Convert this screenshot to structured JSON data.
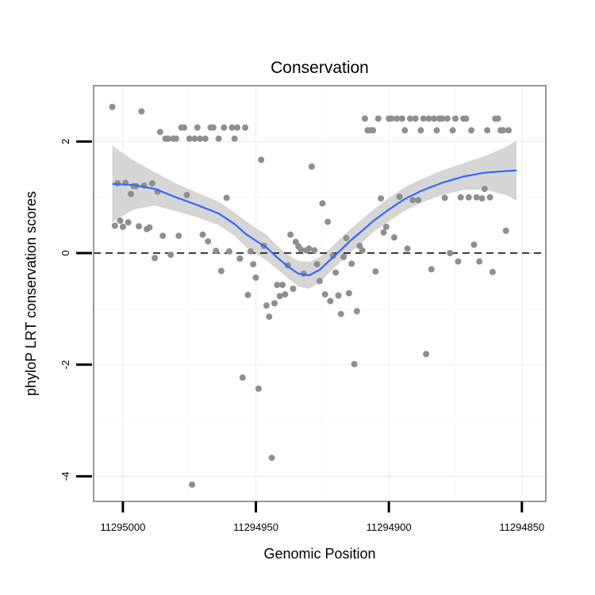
{
  "chart_data": {
    "type": "scatter",
    "title": "Conservation",
    "xlabel": "Genomic Position",
    "ylabel": "phyloP LRT conservation scores",
    "x_reversed": true,
    "xlim": [
      11295011,
      11294841
    ],
    "ylim": [
      -4.45,
      3.0
    ],
    "xticks": [
      11295000,
      11294950,
      11294900,
      11294850
    ],
    "xtick_labels": [
      "11295000",
      "11294950",
      "11294900",
      "11294850"
    ],
    "yticks": [
      2,
      0,
      -2,
      -4
    ],
    "ytick_labels": [
      "2",
      "0",
      "-2",
      "-4"
    ],
    "hline": 0,
    "grid": true,
    "legend": "none",
    "colors": {
      "points": "#8f8f8f",
      "smooth": "#3366ff",
      "band": "#d6d6d6"
    },
    "series": [
      {
        "type": "scatter",
        "points": [
          [
            11295004,
            2.62
          ],
          [
            11295003,
            0.49
          ],
          [
            11295002,
            1.25
          ],
          [
            11295001,
            0.58
          ],
          [
            11295000,
            0.47
          ],
          [
            11294999,
            1.26
          ],
          [
            11294998,
            0.55
          ],
          [
            11294997,
            1.06
          ],
          [
            11294996,
            1.2
          ],
          [
            11294995,
            1.2
          ],
          [
            11294994,
            0.48
          ],
          [
            11294993,
            2.54
          ],
          [
            11294992,
            1.21
          ],
          [
            11294991,
            0.43
          ],
          [
            11294990,
            0.46
          ],
          [
            11294989,
            1.25
          ],
          [
            11294988,
            -0.09
          ],
          [
            11294987,
            1.1
          ],
          [
            11294986,
            2.17
          ],
          [
            11294985,
            0.31
          ],
          [
            11294984,
            2.05
          ],
          [
            11294983,
            2.05
          ],
          [
            11294982,
            -0.03
          ],
          [
            11294981,
            2.05
          ],
          [
            11294980,
            2.05
          ],
          [
            11294979,
            0.31
          ],
          [
            11294978,
            2.25
          ],
          [
            11294977,
            2.25
          ],
          [
            11294976,
            1.04
          ],
          [
            11294975,
            2.05
          ],
          [
            11294974,
            -4.15
          ],
          [
            11294973,
            2.05
          ],
          [
            11294972,
            2.25
          ],
          [
            11294971,
            2.05
          ],
          [
            11294970,
            0.33
          ],
          [
            11294969,
            2.05
          ],
          [
            11294968,
            0.21
          ],
          [
            11294967,
            2.25
          ],
          [
            11294966,
            2.25
          ],
          [
            11294965,
            0.04
          ],
          [
            11294964,
            2.05
          ],
          [
            11294963,
            -0.32
          ],
          [
            11294962,
            2.25
          ],
          [
            11294961,
            0.99
          ],
          [
            11294960,
            0.03
          ],
          [
            11294959,
            2.25
          ],
          [
            11294958,
            2.05
          ],
          [
            11294957,
            2.25
          ],
          [
            11294956,
            -0.1
          ],
          [
            11294955,
            -2.23
          ],
          [
            11294954,
            2.25
          ],
          [
            11294953,
            -0.75
          ],
          [
            11294952,
            0.03
          ],
          [
            11294951,
            -0.2
          ],
          [
            11294950,
            -0.44
          ],
          [
            11294949,
            -2.43
          ],
          [
            11294948,
            1.67
          ],
          [
            11294947,
            0.13
          ],
          [
            11294946,
            -0.94
          ],
          [
            11294945,
            -1.14
          ],
          [
            11294944,
            -3.67
          ],
          [
            11294943,
            -0.9
          ],
          [
            11294942,
            -0.57
          ],
          [
            11294941,
            -0.77
          ],
          [
            11294940,
            -0.57
          ],
          [
            11294939,
            -0.74
          ],
          [
            11294938,
            -0.22
          ],
          [
            11294937,
            0.33
          ],
          [
            11294936,
            -0.64
          ],
          [
            11294935,
            0.2
          ],
          [
            11294934,
            0.12
          ],
          [
            11294933,
            0.06
          ],
          [
            11294932,
            -0.37
          ],
          [
            11294931,
            0.05
          ],
          [
            11294930,
            0.08
          ],
          [
            11294929,
            1.55
          ],
          [
            11294928,
            0.05
          ],
          [
            11294927,
            -0.2
          ],
          [
            11294926,
            -0.5
          ],
          [
            11294925,
            0.89
          ],
          [
            11294924,
            -0.74
          ],
          [
            11294923,
            0.56
          ],
          [
            11294922,
            -0.86
          ],
          [
            11294921,
            -0.05
          ],
          [
            11294920,
            -0.35
          ],
          [
            11294919,
            -0.76
          ],
          [
            11294918,
            -1.09
          ],
          [
            11294917,
            -0.07
          ],
          [
            11294916,
            0.27
          ],
          [
            11294915,
            -0.72
          ],
          [
            11294914,
            -0.19
          ],
          [
            11294913,
            -1.99
          ],
          [
            11294912,
            -1.04
          ],
          [
            11294911,
            0.13
          ],
          [
            11294910,
            0.05
          ],
          [
            11294909,
            2.41
          ],
          [
            11294908,
            2.2
          ],
          [
            11294907,
            2.2
          ],
          [
            11294906,
            2.2
          ],
          [
            11294905,
            -0.33
          ],
          [
            11294904,
            2.41
          ],
          [
            11294903,
            0.98
          ],
          [
            11294902,
            0.37
          ],
          [
            11294901,
            0.47
          ],
          [
            11294900,
            2.41
          ],
          [
            11294899,
            2.41
          ],
          [
            11294898,
            0.28
          ],
          [
            11294897,
            2.41
          ],
          [
            11294896,
            1.01
          ],
          [
            11294895,
            2.41
          ],
          [
            11294894,
            2.2
          ],
          [
            11294893,
            0.08
          ],
          [
            11294892,
            2.41
          ],
          [
            11294891,
            0.95
          ],
          [
            11294890,
            2.41
          ],
          [
            11294889,
            0.95
          ],
          [
            11294888,
            2.2
          ],
          [
            11294887,
            2.41
          ],
          [
            11294886,
            -1.81
          ],
          [
            11294885,
            2.41
          ],
          [
            11294884,
            -0.29
          ],
          [
            11294883,
            2.41
          ],
          [
            11294882,
            2.2
          ],
          [
            11294881,
            2.41
          ],
          [
            11294880,
            2.41
          ],
          [
            11294879,
            0.99
          ],
          [
            11294878,
            2.41
          ],
          [
            11294877,
            0.0
          ],
          [
            11294876,
            2.2
          ],
          [
            11294875,
            2.41
          ],
          [
            11294874,
            -0.15
          ],
          [
            11294873,
            1.0
          ],
          [
            11294872,
            2.41
          ],
          [
            11294871,
            2.41
          ],
          [
            11294870,
            1.0
          ],
          [
            11294869,
            2.2
          ],
          [
            11294868,
            0.15
          ],
          [
            11294867,
            1.0
          ],
          [
            11294866,
            -0.15
          ],
          [
            11294865,
            0.98
          ],
          [
            11294864,
            1.15
          ],
          [
            11294863,
            2.2
          ],
          [
            11294862,
            1.0
          ],
          [
            11294861,
            -0.34
          ],
          [
            11294860,
            2.41
          ],
          [
            11294859,
            2.41
          ],
          [
            11294858,
            2.2
          ],
          [
            11294857,
            2.2
          ],
          [
            11294856,
            0.4
          ],
          [
            11294855,
            2.2
          ]
        ]
      },
      {
        "type": "smooth",
        "x": [
          11295004,
          11294996,
          11294988,
          11294980,
          11294972,
          11294964,
          11294958,
          11294954,
          11294950,
          11294946,
          11294942,
          11294938,
          11294934,
          11294930,
          11294926,
          11294922,
          11294918,
          11294914,
          11294910,
          11294906,
          11294900,
          11294894,
          11294888,
          11294880,
          11294872,
          11294864,
          11294856,
          11294852
        ],
        "y": [
          1.24,
          1.22,
          1.15,
          1.0,
          0.86,
          0.71,
          0.52,
          0.35,
          0.22,
          0.1,
          -0.08,
          -0.24,
          -0.37,
          -0.4,
          -0.3,
          -0.12,
          0.06,
          0.24,
          0.4,
          0.57,
          0.78,
          0.97,
          1.11,
          1.26,
          1.37,
          1.44,
          1.47,
          1.48
        ],
        "ci_upper": [
          1.93,
          1.66,
          1.45,
          1.25,
          1.08,
          0.92,
          0.73,
          0.58,
          0.45,
          0.33,
          0.13,
          -0.03,
          -0.14,
          -0.16,
          -0.07,
          0.09,
          0.27,
          0.45,
          0.61,
          0.77,
          0.99,
          1.18,
          1.32,
          1.48,
          1.61,
          1.74,
          1.9,
          2.02
        ],
        "ci_lower": [
          0.55,
          0.78,
          0.85,
          0.75,
          0.64,
          0.5,
          0.31,
          0.12,
          -0.01,
          -0.13,
          -0.29,
          -0.45,
          -0.6,
          -0.64,
          -0.53,
          -0.33,
          -0.15,
          0.03,
          0.19,
          0.37,
          0.57,
          0.76,
          0.9,
          1.04,
          1.13,
          1.14,
          1.04,
          0.94
        ]
      }
    ]
  }
}
